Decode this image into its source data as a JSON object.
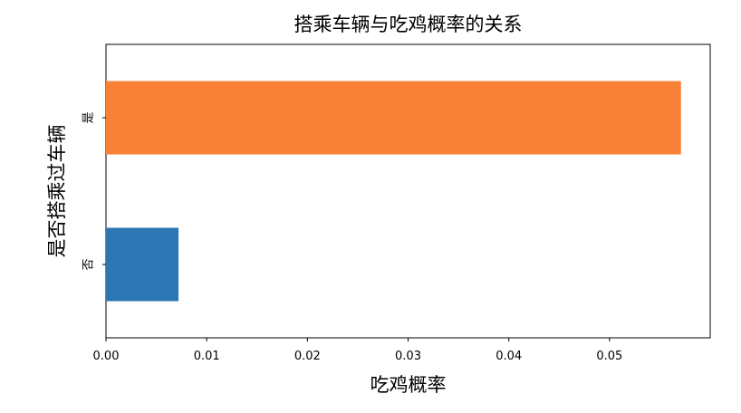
{
  "chart_data": {
    "type": "bar",
    "orientation": "horizontal",
    "title": "搭乘车辆与吃鸡概率的关系",
    "xlabel": "吃鸡概率",
    "ylabel": "是否搭乘过车辆",
    "categories": [
      "否",
      "是"
    ],
    "values": [
      0.0072,
      0.0571
    ],
    "bar_colors": [
      "#2b76b3",
      "#f98037"
    ],
    "xlim": [
      0,
      0.06
    ],
    "xticks": [
      0.0,
      0.01,
      0.02,
      0.03,
      0.04,
      0.05
    ],
    "xtick_labels": [
      "0.00",
      "0.01",
      "0.02",
      "0.03",
      "0.04",
      "0.05"
    ],
    "grid": false,
    "legend": "none"
  }
}
